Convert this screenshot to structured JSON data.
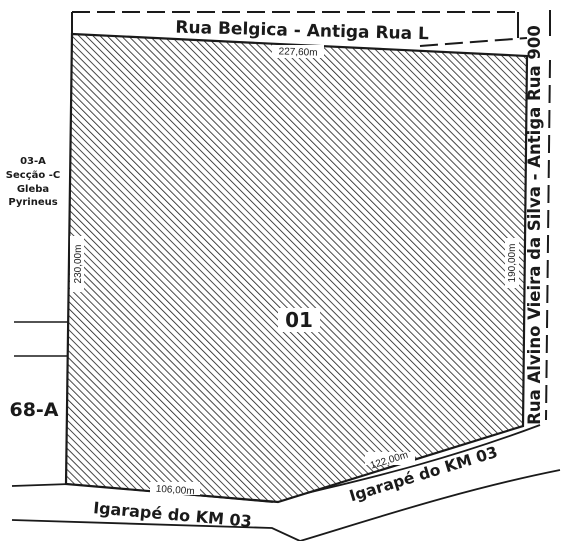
{
  "parcel": {
    "lot_number": "01"
  },
  "roads": {
    "top": "Rua Belgica - Antiga Rua L",
    "right": "Rua Alvino Vieira da Silva - Antiga Rua 900",
    "bottom_left": "Igarapé do KM 03",
    "bottom_right": "Igarapé do KM 03"
  },
  "dimensions": {
    "top": "227,60m",
    "left": "230,00m",
    "right": "190,00m",
    "bottom_left": "106,00m",
    "bottom_right": "122,00m"
  },
  "neighbors": {
    "west_upper": [
      "03-A",
      "Secção -C",
      "Gleba",
      "Pyrineus"
    ],
    "west_lower": "68-A"
  },
  "colors": {
    "ink": "#1a1a1a",
    "paper": "#ffffff"
  }
}
